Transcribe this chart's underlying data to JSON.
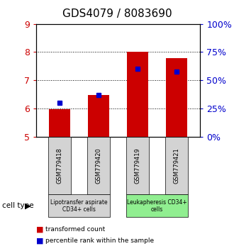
{
  "title": "GDS4079 / 8083690",
  "samples": [
    "GSM779418",
    "GSM779420",
    "GSM779419",
    "GSM779421"
  ],
  "red_values": [
    5.99,
    6.49,
    8.01,
    7.78
  ],
  "blue_values": [
    6.21,
    6.49,
    7.42,
    7.3
  ],
  "ymin": 5,
  "ymax": 9,
  "yticks": [
    5,
    6,
    7,
    8,
    9
  ],
  "right_yticks_pct": [
    0,
    25,
    50,
    75,
    100
  ],
  "right_ytick_vals": [
    5.0,
    6.0,
    7.0,
    8.0,
    9.0
  ],
  "bar_bottom": 5.0,
  "bar_width": 0.55,
  "red_color": "#cc0000",
  "blue_color": "#0000cc",
  "group1_label": "Lipotransfer aspirate\nCD34+ cells",
  "group2_label": "Leukapheresis CD34+\ncells",
  "group1_color": "#d3d3d3",
  "group2_color": "#90ee90",
  "cell_type_label": "cell type",
  "legend_red": "transformed count",
  "legend_blue": "percentile rank within the sample",
  "title_fontsize": 11
}
